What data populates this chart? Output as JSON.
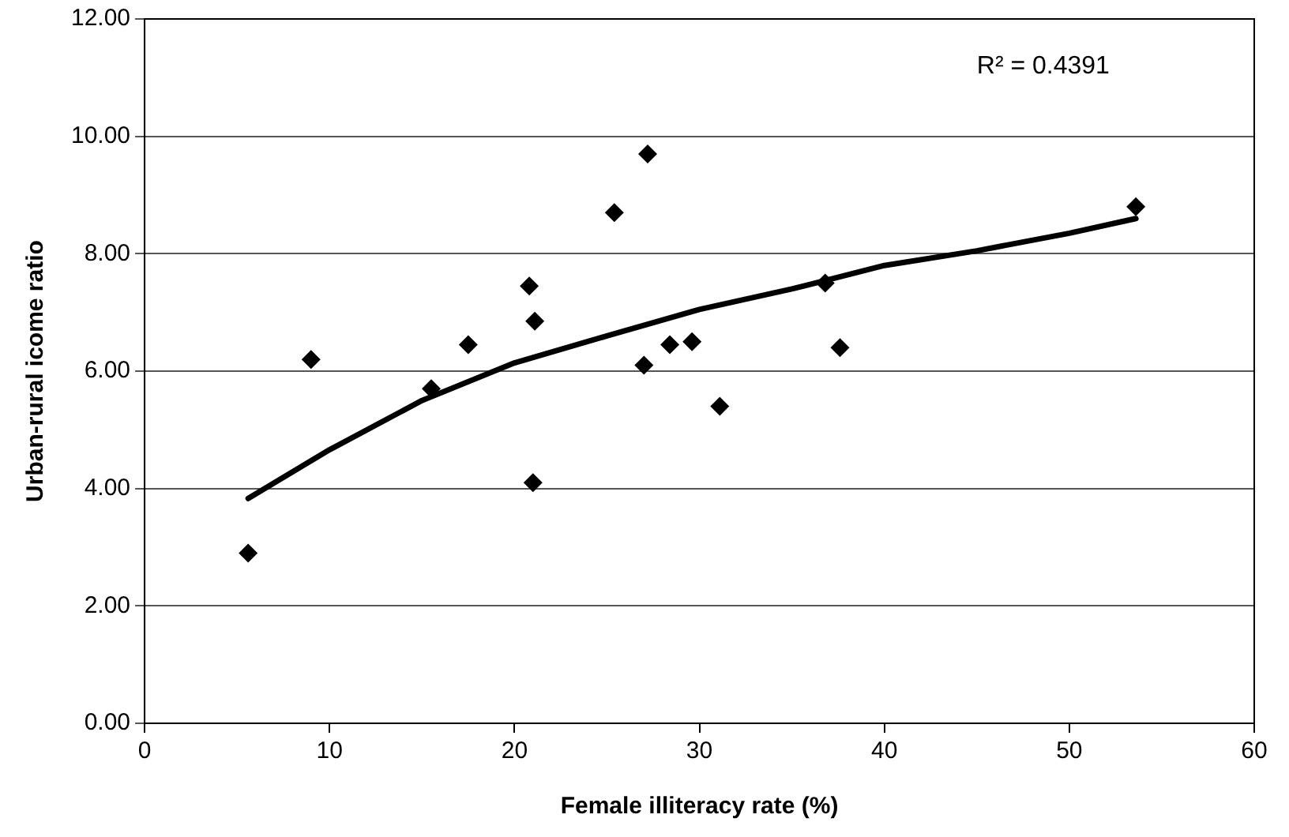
{
  "chart_data": {
    "type": "scatter",
    "xlabel": "Female illiteracy rate (%)",
    "ylabel": "Urban-rural icome ratio",
    "series": [
      {
        "type": "scatter",
        "color": "#000000",
        "x": [
          5.6,
          9.0,
          15.5,
          17.5,
          20.8,
          21.1,
          21.0,
          25.4,
          27.2,
          27.0,
          28.4,
          29.6,
          31.1,
          36.8,
          37.6,
          53.6
        ],
        "values": [
          2.9,
          6.2,
          5.7,
          6.45,
          7.45,
          6.85,
          4.1,
          8.7,
          9.7,
          6.1,
          6.45,
          6.5,
          5.4,
          7.5,
          6.4,
          8.8
        ]
      },
      {
        "type": "line",
        "color": "#000000",
        "marker": "none",
        "x": [
          5.6,
          10,
          15,
          20,
          25,
          30,
          35,
          40,
          45,
          50,
          53.6
        ],
        "values": [
          3.83,
          4.66,
          5.5,
          6.14,
          6.6,
          7.05,
          7.4,
          7.8,
          8.05,
          8.35,
          8.6
        ]
      }
    ],
    "xlim": [
      0,
      60
    ],
    "xticks": [
      0,
      10,
      20,
      30,
      40,
      50,
      60
    ],
    "ylim": [
      0,
      12
    ],
    "yticks": [
      {
        "value": 0,
        "label": "0.00"
      },
      {
        "value": 2,
        "label": "2.00"
      },
      {
        "value": 4,
        "label": "4.00"
      },
      {
        "value": 6,
        "label": "6.00"
      },
      {
        "value": 8,
        "label": "8.00"
      },
      {
        "value": 10,
        "label": "10.00"
      },
      {
        "value": 12,
        "label": "12.00"
      }
    ],
    "annotations": [
      "R² = 0.4391"
    ],
    "grid": "y",
    "legend": false,
    "marker": "diamond"
  }
}
